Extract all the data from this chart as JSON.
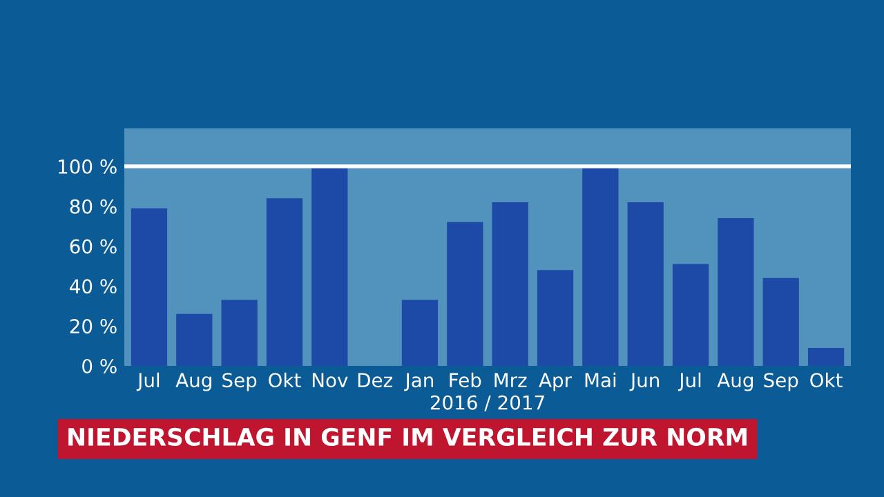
{
  "chart_data": {
    "type": "bar",
    "title": "NIEDERSCHLAG IN GENF IM VERGLEICH ZUR NORM",
    "xlabel": "2016 / 2017",
    "categories": [
      "Jul",
      "Aug",
      "Sep",
      "Okt",
      "Nov",
      "Dez",
      "Jan",
      "Feb",
      "Mrz",
      "Apr",
      "Mai",
      "Jun",
      "Jul",
      "Aug",
      "Sep",
      "Okt"
    ],
    "values": [
      79,
      26,
      33,
      84,
      99,
      0,
      33,
      72,
      82,
      48,
      99,
      82,
      51,
      74,
      44,
      9
    ],
    "color": "#1c4aa6",
    "ylim": [
      0,
      119
    ],
    "yticks": [
      {
        "value": 0,
        "label": "0 %"
      },
      {
        "value": 20,
        "label": "20 %"
      },
      {
        "value": 40,
        "label": "40 %"
      },
      {
        "value": 60,
        "label": "60 %"
      },
      {
        "value": 80,
        "label": "80 %"
      },
      {
        "value": 100,
        "label": "100 %"
      }
    ],
    "ref_lines": [
      {
        "axis": "y",
        "value": 100,
        "color": "#ffffff"
      }
    ],
    "bands": [
      {
        "axis": "y",
        "from": 0,
        "to": 119,
        "color": "#5f9cc4"
      }
    ],
    "grid": false,
    "legend": false
  }
}
